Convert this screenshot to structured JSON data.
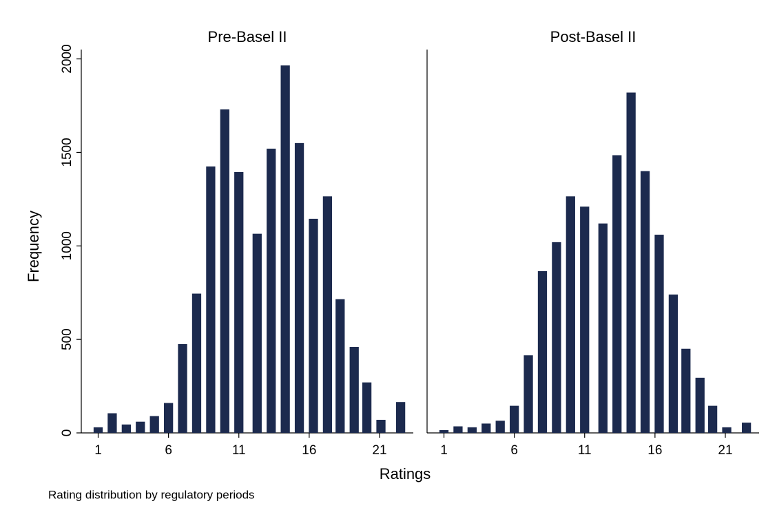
{
  "chart_data": [
    {
      "type": "bar",
      "title": "Pre-Basel II",
      "color": "#1c2a4e",
      "x": [
        1,
        2,
        3,
        4,
        5,
        6,
        7,
        8,
        9,
        10,
        11,
        12.3,
        13.3,
        14.3,
        15.3,
        16.3,
        17.3,
        18.2,
        19.2,
        20.1,
        21.1,
        22.5
      ],
      "values": [
        30,
        105,
        45,
        60,
        90,
        160,
        475,
        745,
        1425,
        1730,
        1395,
        1065,
        1520,
        1965,
        1550,
        1145,
        1265,
        715,
        460,
        270,
        70,
        165
      ],
      "xlim": [
        -0.2,
        23.4
      ],
      "xticks": [
        1,
        6,
        11,
        16,
        21
      ],
      "ylim": [
        0,
        2050
      ],
      "yticks": [
        0,
        500,
        1000,
        1500,
        2000
      ]
    },
    {
      "type": "bar",
      "title": "Post-Basel II",
      "color": "#1c2a4e",
      "x": [
        1,
        2,
        3,
        4,
        5,
        6,
        7,
        8,
        9,
        10,
        11,
        12.3,
        13.3,
        14.3,
        15.3,
        16.3,
        17.3,
        18.2,
        19.2,
        20.1,
        21.1,
        22.5
      ],
      "values": [
        15,
        35,
        30,
        50,
        65,
        145,
        415,
        865,
        1020,
        1265,
        1210,
        1120,
        1485,
        1820,
        1400,
        1060,
        740,
        450,
        295,
        145,
        30,
        55
      ],
      "xlim": [
        -0.2,
        23.4
      ],
      "xticks": [
        1,
        6,
        11,
        16,
        21
      ],
      "ylim": [
        0,
        2050
      ]
    }
  ],
  "xlabel": "Ratings",
  "ylabel": "Frequency",
  "note": "Rating distribution by regulatory periods"
}
